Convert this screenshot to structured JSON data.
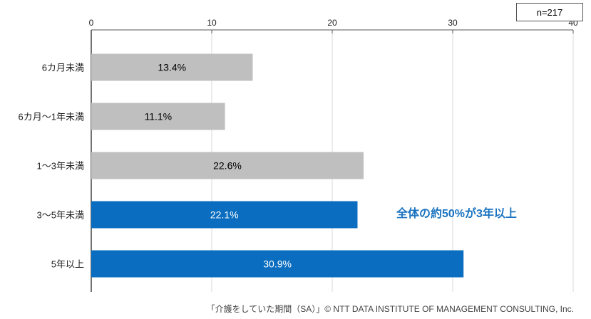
{
  "sample_size": "n=217",
  "annotation": "全体の約50%が3年以上",
  "footer": "「介護をしていた期間（SA）」© NTT DATA INSTITUTE OF MANAGEMENT CONSULTING, Inc.",
  "colors": {
    "gray": "#bfbfbf",
    "blue": "#0a6dbf"
  },
  "chart_data": {
    "type": "bar",
    "orientation": "horizontal",
    "categories": [
      "6カ月未満",
      "6カ月～1年未満",
      "1～3年未満",
      "3～5年未満",
      "5年以上"
    ],
    "values": [
      13.4,
      11.1,
      22.6,
      22.1,
      30.9
    ],
    "value_labels": [
      "13.4%",
      "11.1%",
      "22.6%",
      "22.1%",
      "30.9%"
    ],
    "highlight": [
      false,
      false,
      false,
      true,
      true
    ],
    "xlim": [
      0,
      40
    ],
    "xticks": [
      0,
      10,
      20,
      30,
      40
    ],
    "xaxis_position": "top",
    "grid": true
  }
}
